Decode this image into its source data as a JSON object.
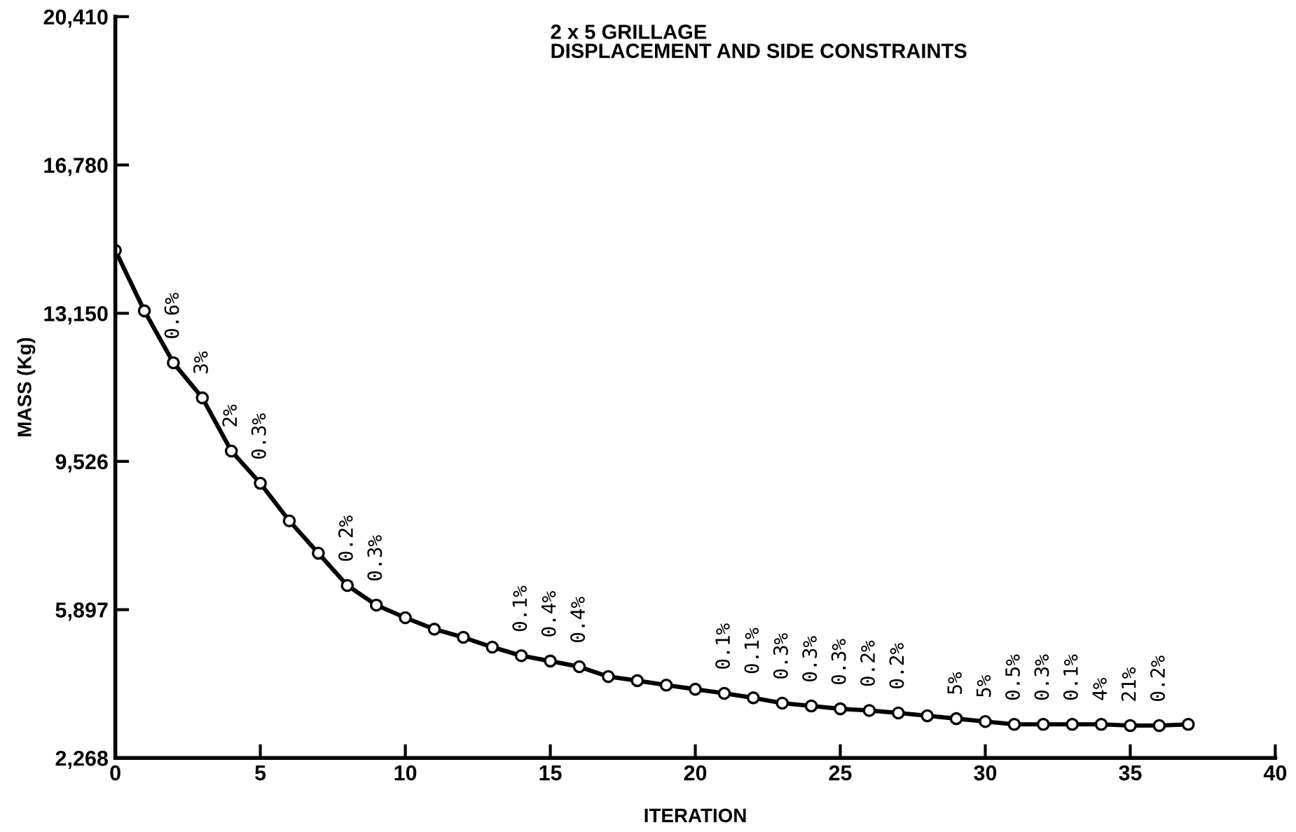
{
  "chart_data": {
    "type": "line",
    "title": "2 x 5 GRILLAGE\nDISPLACEMENT AND SIDE CONSTRAINTS",
    "xlabel": "ITERATION",
    "ylabel": "MASS (Kg)",
    "x": [
      0,
      1,
      2,
      3,
      4,
      5,
      6,
      7,
      8,
      9,
      10,
      11,
      12,
      13,
      14,
      15,
      16,
      17,
      18,
      19,
      20,
      21,
      22,
      23,
      24,
      25,
      26,
      27,
      28,
      29,
      30,
      31,
      32,
      33,
      34,
      35,
      36,
      37
    ],
    "series": [
      {
        "color": "#000000",
        "values": [
          14690,
          13210,
          11940,
          11080,
          9780,
          8990,
          8070,
          7280,
          6490,
          6010,
          5700,
          5420,
          5220,
          4980,
          4770,
          4640,
          4500,
          4260,
          4160,
          4050,
          3950,
          3850,
          3740,
          3610,
          3540,
          3470,
          3430,
          3370,
          3300,
          3230,
          3160,
          3090,
          3090,
          3090,
          3090,
          3060,
          3060,
          3090
        ]
      }
    ],
    "marker": "circle",
    "line_style": "solid",
    "grid": false,
    "legend": false,
    "xlim": [
      0,
      40
    ],
    "xticks": [
      0,
      5,
      10,
      15,
      20,
      25,
      30,
      35,
      40
    ],
    "ylim": [
      2268,
      20410
    ],
    "yticks": [
      {
        "value": 2268,
        "label": "2,268"
      },
      {
        "value": 5897,
        "label": "5,897"
      },
      {
        "value": 9526,
        "label": "9,526"
      },
      {
        "value": 13150,
        "label": "13,150"
      },
      {
        "value": 16780,
        "label": "16,780"
      },
      {
        "value": 20410,
        "label": "20,410"
      }
    ],
    "annotations": [
      {
        "text": "0.6%",
        "x": 2,
        "y": 11940
      },
      {
        "text": "3%",
        "x": 3,
        "y": 11080
      },
      {
        "text": "2%",
        "x": 4,
        "y": 9780
      },
      {
        "text": "0.3%",
        "x": 5,
        "y": 8990
      },
      {
        "text": "0.2%",
        "x": 8,
        "y": 6490
      },
      {
        "text": "0.3%",
        "x": 9,
        "y": 6010
      },
      {
        "text": "0.1%",
        "x": 14,
        "y": 4770
      },
      {
        "text": "0.4%",
        "x": 15,
        "y": 4640
      },
      {
        "text": "0.4%",
        "x": 16,
        "y": 4500
      },
      {
        "text": "0.1%",
        "x": 21,
        "y": 3850
      },
      {
        "text": "0.1%",
        "x": 22,
        "y": 3740
      },
      {
        "text": "0.3%",
        "x": 23,
        "y": 3610
      },
      {
        "text": "0.3%",
        "x": 24,
        "y": 3540
      },
      {
        "text": "0.3%",
        "x": 25,
        "y": 3470
      },
      {
        "text": "0.2%",
        "x": 26,
        "y": 3430
      },
      {
        "text": "0.2%",
        "x": 27,
        "y": 3370
      },
      {
        "text": "5%",
        "x": 29,
        "y": 3230
      },
      {
        "text": "5%",
        "x": 30,
        "y": 3160
      },
      {
        "text": "0.5%",
        "x": 31,
        "y": 3090
      },
      {
        "text": "0.3%",
        "x": 32,
        "y": 3090
      },
      {
        "text": "0.1%",
        "x": 33,
        "y": 3090
      },
      {
        "text": "4%",
        "x": 34,
        "y": 3090
      },
      {
        "text": "21%",
        "x": 35,
        "y": 3060
      },
      {
        "text": "0.2%",
        "x": 36,
        "y": 3060
      }
    ]
  }
}
